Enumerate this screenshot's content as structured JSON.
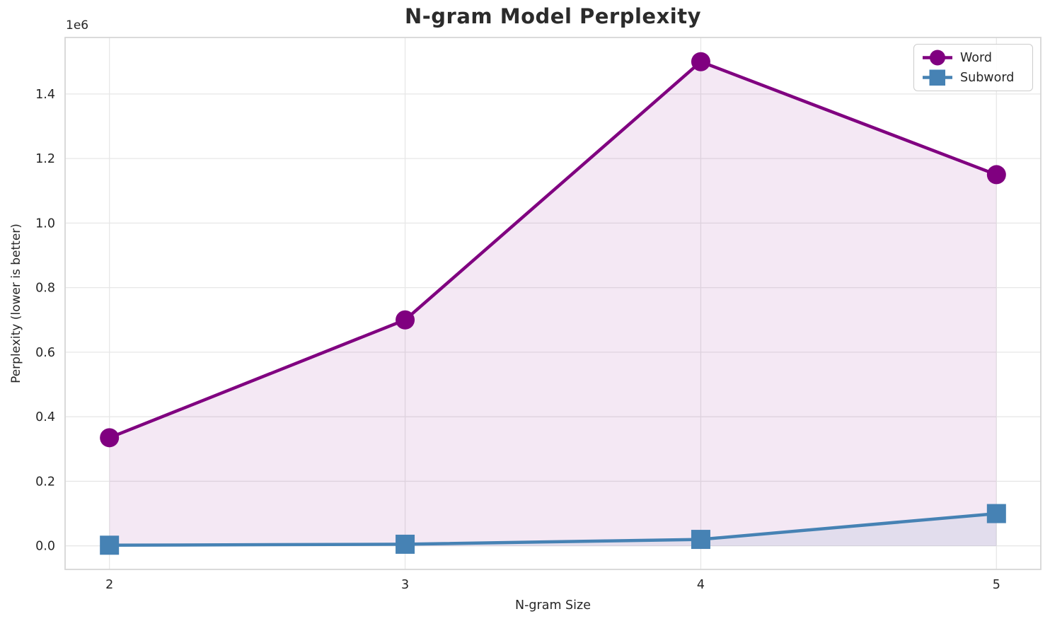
{
  "chart_data": {
    "type": "line",
    "title": "N-gram Model Perplexity",
    "xlabel": "N-gram Size",
    "ylabel": "Perplexity (lower is better)",
    "y_offset_text": "1e6",
    "x": [
      2,
      3,
      4,
      5
    ],
    "series": [
      {
        "name": "Word",
        "values": [
          335000,
          700000,
          1500000,
          1150000
        ],
        "color": "#800080",
        "marker": "circle",
        "fill_alpha": 0.09
      },
      {
        "name": "Subword",
        "values": [
          2000,
          5000,
          20000,
          100000
        ],
        "color": "#4682b4",
        "marker": "square",
        "fill_alpha": 0.1
      }
    ],
    "xticks": [
      2,
      3,
      4,
      5
    ],
    "xtick_labels": [
      "2",
      "3",
      "4",
      "5"
    ],
    "yticks": [
      0,
      200000,
      400000,
      600000,
      800000,
      1000000,
      1200000,
      1400000
    ],
    "ytick_labels": [
      "0.0",
      "0.2",
      "0.4",
      "0.6",
      "0.8",
      "1.0",
      "1.2",
      "1.4"
    ],
    "xlim": [
      1.85,
      5.15
    ],
    "ylim": [
      -73000,
      1575000
    ],
    "grid": true,
    "legend_position": "upper right",
    "fill_to_zero": true,
    "colors": {
      "grid": "#e7e7e7",
      "plot_border": "#d6d6d6",
      "text": "#262626",
      "background": "#ffffff"
    }
  }
}
